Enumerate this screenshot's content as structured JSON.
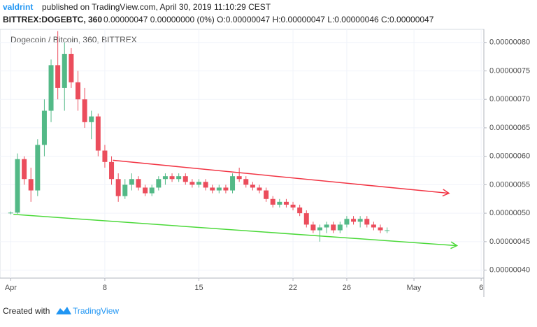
{
  "header": {
    "author": "valdrint",
    "published": "published on TradingView.com, April 30, 2019 11:10:29 CEST",
    "symbol": "BITTREX:DOGEBTC, 360",
    "ohlc": "0.00000047 0.00000000 (0%) O:0.00000047 H:0.00000047 L:0.00000046 C:0.00000047"
  },
  "footer": {
    "created": "Created with",
    "brand": "TradingView"
  },
  "chart_data": {
    "type": "candlestick",
    "title": "Dogecoin / Bitcoin, 360, BITTREX",
    "up_color": "#53b987",
    "down_color": "#eb4d5c",
    "grid": true,
    "xlim": [
      0.2,
      36.2
    ],
    "xticks": [
      {
        "value": 1,
        "label": "Apr"
      },
      8,
      15,
      22,
      26,
      {
        "value": 31,
        "label": "May"
      },
      {
        "value": 36,
        "label": "6"
      }
    ],
    "ylim": [
      3.86e-07,
      8.23e-07
    ],
    "yticks": [
      {
        "value": 4e-07,
        "label": "0.00000040"
      },
      {
        "value": 4.5e-07,
        "label": "0.00000045"
      },
      {
        "value": 5e-07,
        "label": "0.00000050"
      },
      {
        "value": 5.5e-07,
        "label": "0.00000055"
      },
      {
        "value": 6e-07,
        "label": "0.00000060"
      },
      {
        "value": 6.5e-07,
        "label": "0.00000065"
      },
      {
        "value": 7e-07,
        "label": "0.00000070"
      },
      {
        "value": 7.5e-07,
        "label": "0.00000075"
      },
      {
        "value": 8e-07,
        "label": "0.00000080"
      }
    ],
    "x": [
      1.0,
      1.5,
      2.0,
      2.5,
      3.0,
      3.5,
      4.0,
      4.5,
      5.0,
      5.5,
      6.0,
      6.5,
      7.0,
      7.5,
      8.0,
      8.5,
      9.0,
      9.5,
      10.0,
      10.5,
      11.0,
      11.5,
      12.0,
      12.5,
      13.0,
      13.5,
      14.0,
      14.5,
      15.0,
      15.5,
      16.0,
      16.5,
      17.0,
      17.5,
      18.0,
      18.5,
      19.0,
      19.5,
      20.0,
      20.5,
      21.0,
      21.5,
      22.0,
      22.5,
      23.0,
      23.5,
      24.0,
      24.5,
      25.0,
      25.5,
      26.0,
      26.5,
      27.0,
      27.5,
      28.0,
      28.5,
      29.0
    ],
    "open": [
      5e-07,
      5.01e-07,
      5.95e-07,
      5.6e-07,
      5.4e-07,
      6.2e-07,
      6.8e-07,
      7.6e-07,
      7.2e-07,
      7.8e-07,
      7.3e-07,
      7e-07,
      6.6e-07,
      6.7e-07,
      6.1e-07,
      5.9e-07,
      5.6e-07,
      5.3e-07,
      5.5e-07,
      5.6e-07,
      5.45e-07,
      5.35e-07,
      5.45e-07,
      5.6e-07,
      5.65e-07,
      5.6e-07,
      5.65e-07,
      5.55e-07,
      5.5e-07,
      5.55e-07,
      5.45e-07,
      5.4e-07,
      5.45e-07,
      5.4e-07,
      5.65e-07,
      5.6e-07,
      5.5e-07,
      5.45e-07,
      5.4e-07,
      5.25e-07,
      5.15e-07,
      5.2e-07,
      5.15e-07,
      5.1e-07,
      5e-07,
      4.8e-07,
      4.7e-07,
      4.75e-07,
      4.8e-07,
      4.7e-07,
      4.8e-07,
      4.9e-07,
      4.85e-07,
      4.9e-07,
      4.8e-07,
      4.75e-07,
      4.7e-07
    ],
    "high": [
      5.03e-07,
      6.05e-07,
      6e-07,
      5.8e-07,
      6.3e-07,
      7e-07,
      7.7e-07,
      8.2e-07,
      8e-07,
      7.9e-07,
      7.5e-07,
      7.2e-07,
      6.8e-07,
      6.75e-07,
      6.2e-07,
      6e-07,
      5.7e-07,
      5.6e-07,
      5.7e-07,
      5.65e-07,
      5.5e-07,
      5.5e-07,
      5.65e-07,
      5.7e-07,
      5.7e-07,
      5.7e-07,
      5.7e-07,
      5.6e-07,
      5.6e-07,
      5.6e-07,
      5.5e-07,
      5.5e-07,
      5.5e-07,
      5.7e-07,
      5.8e-07,
      5.65e-07,
      5.55e-07,
      5.5e-07,
      5.45e-07,
      5.3e-07,
      5.25e-07,
      5.25e-07,
      5.2e-07,
      5.15e-07,
      5.05e-07,
      4.85e-07,
      4.8e-07,
      4.85e-07,
      4.85e-07,
      4.85e-07,
      4.95e-07,
      4.95e-07,
      4.95e-07,
      4.95e-07,
      4.85e-07,
      4.8e-07,
      4.75e-07
    ],
    "low": [
      4.98e-07,
      4.99e-07,
      5.5e-07,
      5.2e-07,
      5.3e-07,
      6e-07,
      6.6e-07,
      7e-07,
      6.8e-07,
      7.2e-07,
      6.8e-07,
      6.5e-07,
      6.3e-07,
      6e-07,
      5.8e-07,
      5.5e-07,
      5.2e-07,
      5.25e-07,
      5.4e-07,
      5.4e-07,
      5.3e-07,
      5.3e-07,
      5.4e-07,
      5.5e-07,
      5.55e-07,
      5.55e-07,
      5.5e-07,
      5.45e-07,
      5.45e-07,
      5.4e-07,
      5.35e-07,
      5.35e-07,
      5.35e-07,
      5.35e-07,
      5.55e-07,
      5.45e-07,
      5.4e-07,
      5.35e-07,
      5.2e-07,
      5.1e-07,
      5.1e-07,
      5.1e-07,
      5.05e-07,
      4.95e-07,
      4.75e-07,
      4.65e-07,
      4.5e-07,
      4.65e-07,
      4.65e-07,
      4.65e-07,
      4.75e-07,
      4.8e-07,
      4.75e-07,
      4.75e-07,
      4.7e-07,
      4.65e-07,
      4.65e-07
    ],
    "close": [
      5.01e-07,
      5.95e-07,
      5.6e-07,
      5.4e-07,
      6.2e-07,
      6.8e-07,
      7.6e-07,
      7.2e-07,
      7.8e-07,
      7.3e-07,
      7e-07,
      6.6e-07,
      6.7e-07,
      6.1e-07,
      5.9e-07,
      5.6e-07,
      5.3e-07,
      5.5e-07,
      5.6e-07,
      5.45e-07,
      5.35e-07,
      5.45e-07,
      5.6e-07,
      5.65e-07,
      5.6e-07,
      5.65e-07,
      5.55e-07,
      5.5e-07,
      5.55e-07,
      5.45e-07,
      5.4e-07,
      5.45e-07,
      5.4e-07,
      5.65e-07,
      5.6e-07,
      5.5e-07,
      5.45e-07,
      5.4e-07,
      5.25e-07,
      5.15e-07,
      5.2e-07,
      5.15e-07,
      5.1e-07,
      5e-07,
      4.8e-07,
      4.7e-07,
      4.75e-07,
      4.8e-07,
      4.7e-07,
      4.8e-07,
      4.9e-07,
      4.85e-07,
      4.9e-07,
      4.8e-07,
      4.75e-07,
      4.7e-07,
      4.7e-07
    ],
    "trendlines": [
      {
        "color": "#f23645",
        "x": [
          8.6,
          33.6
        ],
        "y": [
          5.93e-07,
          5.35e-07
        ]
      },
      {
        "color": "#4cd93a",
        "x": [
          1.2,
          34.2
        ],
        "y": [
          4.98e-07,
          4.43e-07
        ]
      }
    ]
  }
}
